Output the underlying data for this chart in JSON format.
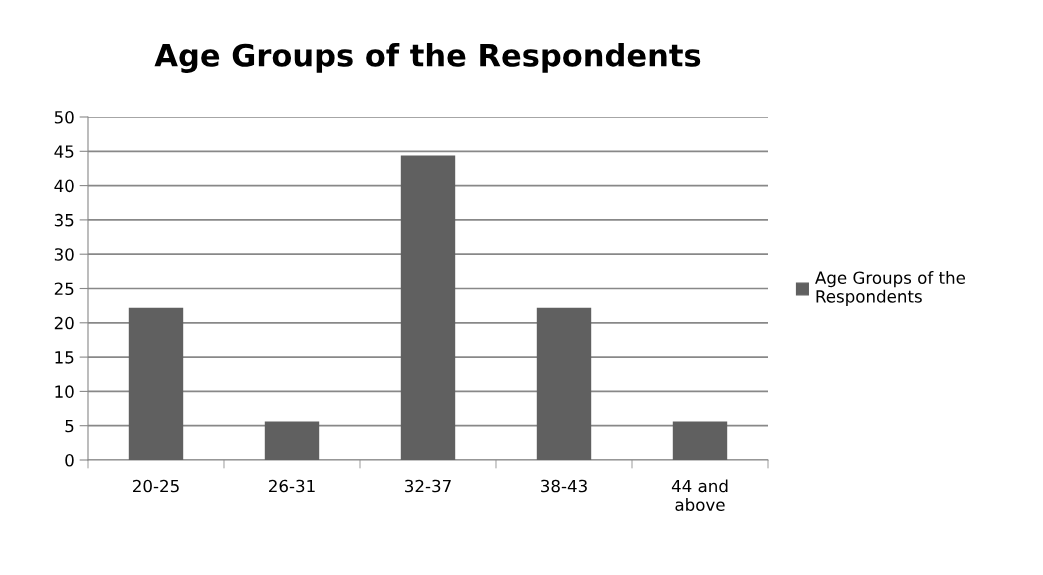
{
  "chart_data": {
    "type": "bar",
    "title": "Age Groups of the Respondents",
    "categories": [
      "20-25",
      "26-31",
      "32-37",
      "38-43",
      "44 and\nabove"
    ],
    "series": [
      {
        "name": "Age Groups of the\nRespondents",
        "color": "#606060",
        "values": [
          22.2,
          5.6,
          44.4,
          22.2,
          5.6
        ]
      }
    ],
    "ylim": [
      0,
      50
    ],
    "yticks": [
      0,
      5,
      10,
      15,
      20,
      25,
      30,
      35,
      40,
      45,
      50
    ],
    "grid": "y",
    "legend": "right"
  }
}
